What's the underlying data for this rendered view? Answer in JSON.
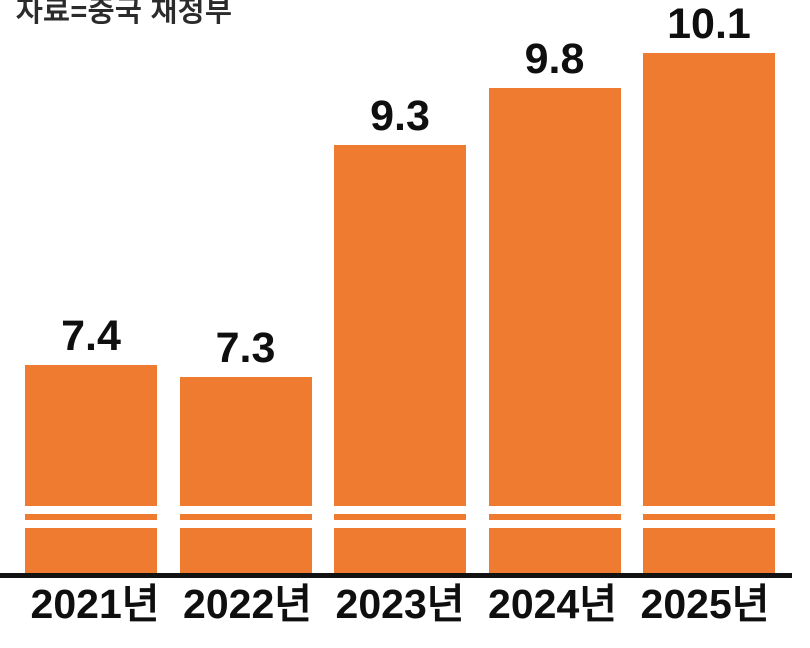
{
  "source_note": "자료=중국 재정부",
  "chart_data": {
    "type": "bar",
    "title": "",
    "subtitle": "",
    "source": "자료=중국 재정부",
    "categories": [
      "2021년",
      "2022년",
      "2023년",
      "2024년",
      "2025년"
    ],
    "values": [
      7.4,
      7.3,
      9.3,
      9.8,
      10.1
    ],
    "value_labels": [
      "7.4",
      "7.3",
      "9.3",
      "9.8",
      "10.1"
    ],
    "xlabel": "",
    "ylabel": "",
    "ylim": [
      5.6,
      10.1
    ],
    "axis_break": true,
    "grid": false,
    "legend_position": "none",
    "bar_color": "#ee7b2f",
    "label_color": "#0f0f0f",
    "axis_color": "#121212"
  }
}
